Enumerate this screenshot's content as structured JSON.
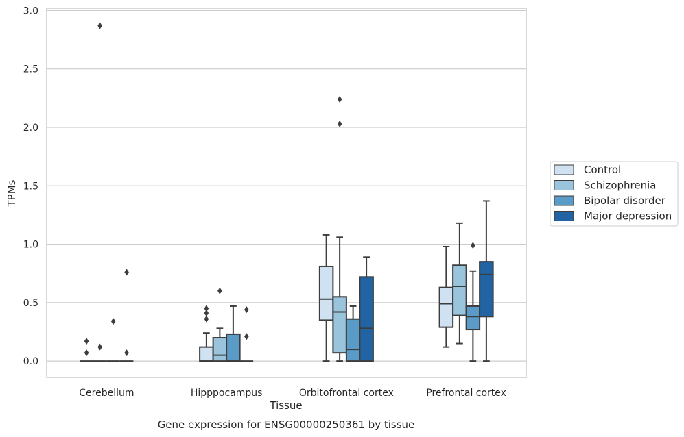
{
  "chart_data": {
    "type": "box",
    "title": "",
    "caption": "Gene expression for ENSG00000250361 by tissue",
    "xlabel": "Tissue",
    "ylabel": "TPMs",
    "ylim": [
      -0.14,
      3.02
    ],
    "yticks": [
      "0.0",
      "0.5",
      "1.0",
      "1.5",
      "2.0",
      "2.5",
      "3.0"
    ],
    "grid": "horizontal",
    "legend_position": "right",
    "categories": [
      "Cerebellum",
      "Hipppocampus",
      "Orbitofrontal cortex",
      "Prefrontal cortex"
    ],
    "series": [
      {
        "name": "Control",
        "color": "#d0e1f2",
        "boxes": [
          {
            "q1": 0,
            "median": 0,
            "q3": 0,
            "whislo": 0,
            "whishi": 0,
            "fliers": [
              0.17,
              0.07
            ]
          },
          {
            "q1": 0,
            "median": 0,
            "q3": 0.12,
            "whislo": 0,
            "whishi": 0.24,
            "fliers": [
              0.36,
              0.41,
              0.45
            ]
          },
          {
            "q1": 0.35,
            "median": 0.53,
            "q3": 0.81,
            "whislo": 0,
            "whishi": 1.08,
            "fliers": []
          },
          {
            "q1": 0.29,
            "median": 0.49,
            "q3": 0.63,
            "whislo": 0.12,
            "whishi": 0.98,
            "fliers": []
          }
        ]
      },
      {
        "name": "Schizophrenia",
        "color": "#9ac3dc",
        "boxes": [
          {
            "q1": 0,
            "median": 0,
            "q3": 0,
            "whislo": 0,
            "whishi": 0,
            "fliers": [
              0.12,
              2.87
            ]
          },
          {
            "q1": 0,
            "median": 0.05,
            "q3": 0.2,
            "whislo": 0,
            "whishi": 0.28,
            "fliers": [
              0.6
            ]
          },
          {
            "q1": 0.07,
            "median": 0.42,
            "q3": 0.55,
            "whislo": 0,
            "whishi": 1.06,
            "fliers": [
              2.03,
              2.24
            ]
          },
          {
            "q1": 0.39,
            "median": 0.64,
            "q3": 0.82,
            "whislo": 0.15,
            "whishi": 1.18,
            "fliers": []
          }
        ]
      },
      {
        "name": "Bipolar disorder",
        "color": "#5a9bc8",
        "boxes": [
          {
            "q1": 0,
            "median": 0,
            "q3": 0,
            "whislo": 0,
            "whishi": 0,
            "fliers": [
              0.34
            ]
          },
          {
            "q1": 0,
            "median": 0,
            "q3": 0.23,
            "whislo": 0,
            "whishi": 0.47,
            "fliers": []
          },
          {
            "q1": 0,
            "median": 0.1,
            "q3": 0.36,
            "whislo": 0,
            "whishi": 0.47,
            "fliers": []
          },
          {
            "q1": 0.27,
            "median": 0.38,
            "q3": 0.47,
            "whislo": 0,
            "whishi": 0.77,
            "fliers": [
              0.99
            ]
          }
        ]
      },
      {
        "name": "Major depression",
        "color": "#2263a3",
        "boxes": [
          {
            "q1": 0,
            "median": 0,
            "q3": 0,
            "whislo": 0,
            "whishi": 0,
            "fliers": [
              0.07,
              0.76
            ]
          },
          {
            "q1": 0,
            "median": 0,
            "q3": 0,
            "whislo": 0,
            "whishi": 0,
            "fliers": [
              0.21,
              0.44
            ]
          },
          {
            "q1": 0,
            "median": 0.28,
            "q3": 0.72,
            "whislo": 0,
            "whishi": 0.89,
            "fliers": []
          },
          {
            "q1": 0.38,
            "median": 0.74,
            "q3": 0.85,
            "whislo": 0,
            "whishi": 1.37,
            "fliers": []
          }
        ]
      }
    ]
  }
}
